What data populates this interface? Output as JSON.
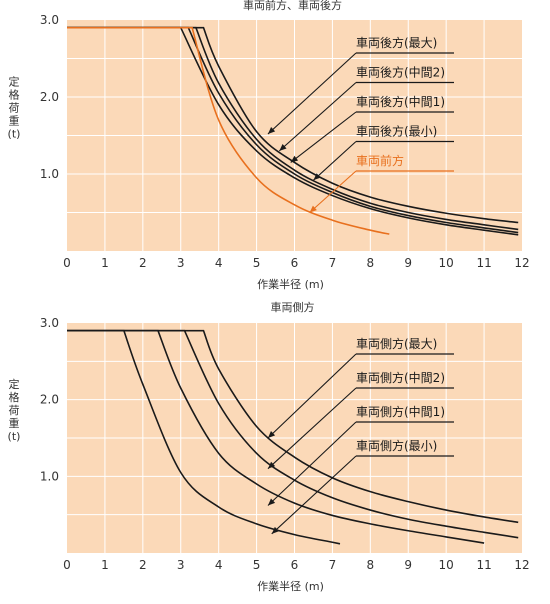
{
  "colors": {
    "plot_bg": "#fbd9b8",
    "grid": "#ffffff",
    "curve": "#1a1a1a",
    "accent": "#e8701e",
    "text": "#333333"
  },
  "chart_data": [
    {
      "type": "line",
      "title": "車両前方、車両後方",
      "xlabel": "作業半径 (m)",
      "ylabel": "定格荷重 (t)",
      "xlim": [
        0,
        12
      ],
      "ylim": [
        0,
        3.0
      ],
      "x_ticks": [
        0,
        1,
        2,
        3,
        4,
        5,
        6,
        7,
        8,
        9,
        10,
        11,
        12
      ],
      "y_ticks": [
        1.0,
        2.0,
        3.0
      ],
      "grid": true,
      "series": [
        {
          "name": "車両後方(最大)",
          "color": "#1a1a1a",
          "x": [
            0,
            3.6,
            4,
            5,
            6,
            7,
            8,
            9,
            10,
            11,
            11.9
          ],
          "y": [
            2.9,
            2.9,
            2.4,
            1.55,
            1.15,
            0.88,
            0.7,
            0.58,
            0.49,
            0.42,
            0.37
          ]
        },
        {
          "name": "車両後方(中間2)",
          "color": "#1a1a1a",
          "x": [
            0,
            3.4,
            4,
            5,
            6,
            7,
            8,
            9,
            10,
            11,
            11.9
          ],
          "y": [
            2.9,
            2.9,
            2.18,
            1.45,
            1.05,
            0.8,
            0.62,
            0.5,
            0.41,
            0.34,
            0.28
          ]
        },
        {
          "name": "車両後方(中間1)",
          "color": "#1a1a1a",
          "x": [
            0,
            3.2,
            4,
            5,
            6,
            7,
            8,
            9,
            10,
            11,
            11.9
          ],
          "y": [
            2.9,
            2.9,
            2.05,
            1.38,
            1.0,
            0.76,
            0.58,
            0.46,
            0.37,
            0.3,
            0.24
          ]
        },
        {
          "name": "車両後方(最小)",
          "color": "#1a1a1a",
          "x": [
            0,
            3.0,
            4,
            5,
            6,
            7,
            8,
            9,
            10,
            11,
            11.9
          ],
          "y": [
            2.9,
            2.9,
            1.9,
            1.3,
            0.95,
            0.72,
            0.55,
            0.43,
            0.34,
            0.27,
            0.21
          ]
        },
        {
          "name": "車両前方",
          "color": "#e8701e",
          "x": [
            0,
            3.3,
            4,
            5,
            6,
            7,
            8,
            8.5
          ],
          "y": [
            2.9,
            2.9,
            1.7,
            0.95,
            0.6,
            0.4,
            0.27,
            0.22
          ]
        }
      ],
      "annotations": [
        {
          "text": "車両後方(最大)",
          "target": [
            5.3,
            1.52
          ],
          "color": "#1a1a1a"
        },
        {
          "text": "車両後方(中間2)",
          "target": [
            5.6,
            1.3
          ],
          "color": "#1a1a1a"
        },
        {
          "text": "車両後方(中間1)",
          "target": [
            5.9,
            1.15
          ],
          "color": "#1a1a1a"
        },
        {
          "text": "車両後方(最小)",
          "target": [
            6.5,
            0.92
          ],
          "color": "#1a1a1a"
        },
        {
          "text": "車両前方",
          "target": [
            6.4,
            0.5
          ],
          "color": "#e8701e"
        }
      ]
    },
    {
      "type": "line",
      "title": "車両側方",
      "xlabel": "作業半径 (m)",
      "ylabel": "定格荷重 (t)",
      "xlim": [
        0,
        12
      ],
      "ylim": [
        0,
        3.0
      ],
      "x_ticks": [
        0,
        1,
        2,
        3,
        4,
        5,
        6,
        7,
        8,
        9,
        10,
        11,
        12
      ],
      "y_ticks": [
        1.0,
        2.0,
        3.0
      ],
      "grid": true,
      "series": [
        {
          "name": "車両側方(最大)",
          "color": "#1a1a1a",
          "x": [
            0,
            3.6,
            4,
            5,
            6,
            7,
            8,
            9,
            10,
            11,
            11.9
          ],
          "y": [
            2.9,
            2.9,
            2.4,
            1.65,
            1.25,
            0.98,
            0.8,
            0.67,
            0.56,
            0.47,
            0.4
          ]
        },
        {
          "name": "車両側方(中間2)",
          "color": "#1a1a1a",
          "x": [
            0,
            3.1,
            4,
            5,
            6,
            7,
            8,
            9,
            10,
            11,
            11.9
          ],
          "y": [
            2.9,
            2.9,
            1.95,
            1.3,
            0.95,
            0.72,
            0.56,
            0.44,
            0.35,
            0.27,
            0.2
          ]
        },
        {
          "name": "車両側方(中間1)",
          "color": "#1a1a1a",
          "x": [
            0,
            2.4,
            3,
            4,
            5,
            6,
            7,
            8,
            9,
            10,
            11
          ],
          "y": [
            2.9,
            2.9,
            2.15,
            1.3,
            0.9,
            0.65,
            0.49,
            0.38,
            0.29,
            0.21,
            0.13
          ]
        },
        {
          "name": "車両側方(最小)",
          "color": "#1a1a1a",
          "x": [
            0,
            1.5,
            2,
            3,
            4,
            5,
            6,
            7,
            7.2
          ],
          "y": [
            2.9,
            2.9,
            2.2,
            1.05,
            0.6,
            0.38,
            0.24,
            0.14,
            0.12
          ]
        }
      ],
      "annotations": [
        {
          "text": "車両側方(最大)",
          "target": [
            5.3,
            1.5
          ],
          "color": "#1a1a1a"
        },
        {
          "text": "車両側方(中間2)",
          "target": [
            5.3,
            1.1
          ],
          "color": "#1a1a1a"
        },
        {
          "text": "車両側方(中間1)",
          "target": [
            5.3,
            0.62
          ],
          "color": "#1a1a1a"
        },
        {
          "text": "車両側方(最小)",
          "target": [
            5.4,
            0.25
          ],
          "color": "#1a1a1a"
        }
      ]
    }
  ]
}
